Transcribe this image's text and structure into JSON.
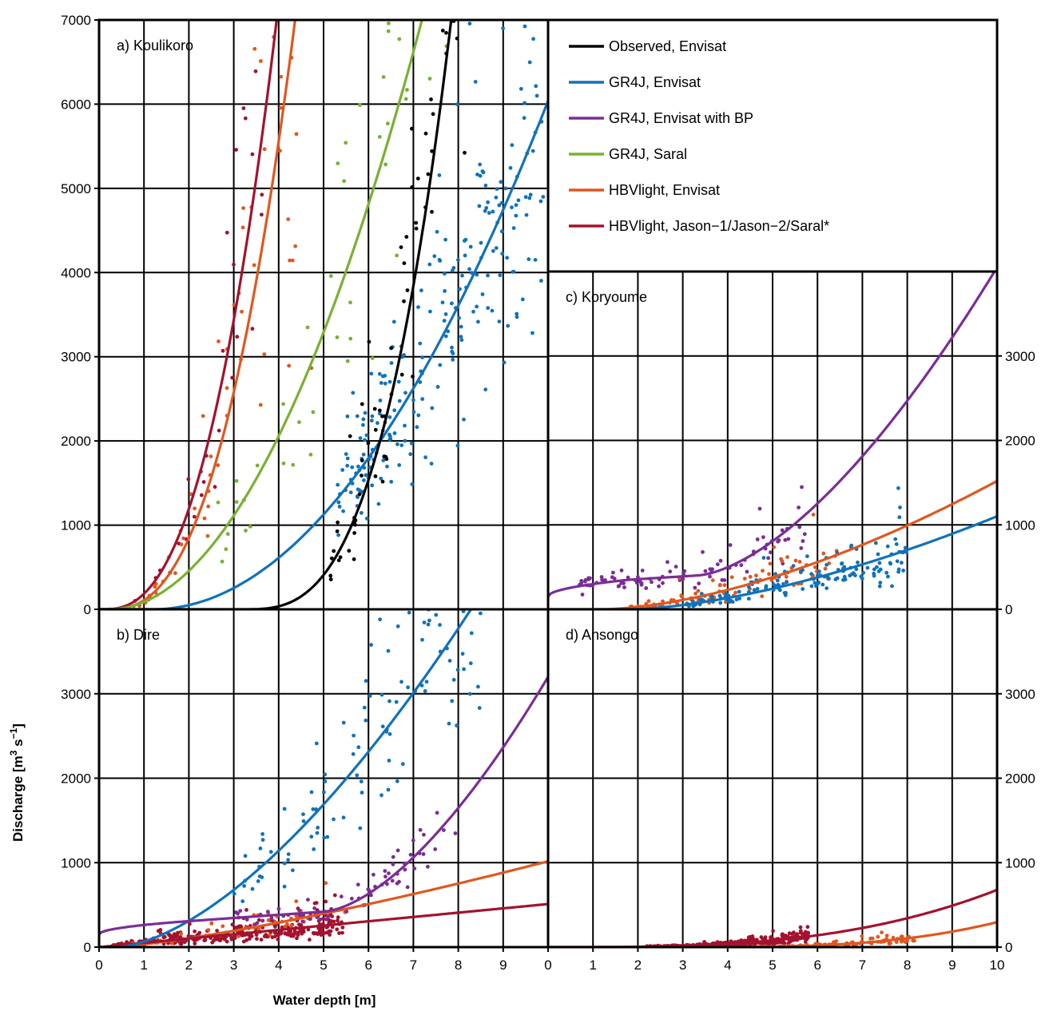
{
  "xlabel": "Water depth [m]",
  "ylabel_main": "Discharge [m",
  "ylabel_sup1": "3",
  "ylabel_mid": " s",
  "ylabel_sup2": "−1",
  "ylabel_end": "]",
  "colors": {
    "observed_envisat": "#000000",
    "gr4j_envisat": "#1072ba",
    "gr4j_envisat_bp": "#7b2d96",
    "gr4j_saral": "#79b130",
    "hbvlight_envisat": "#e0571f",
    "hbvlight_jason": "#a3122e"
  },
  "legend": [
    {
      "key": "observed_envisat",
      "label": "Observed, Envisat"
    },
    {
      "key": "gr4j_envisat",
      "label": "GR4J, Envisat"
    },
    {
      "key": "gr4j_envisat_bp",
      "label": "GR4J, Envisat with BP"
    },
    {
      "key": "gr4j_saral",
      "label": "GR4J, Saral"
    },
    {
      "key": "hbvlight_envisat",
      "label": "HBVlight, Envisat"
    },
    {
      "key": "hbvlight_jason",
      "label": "HBVlight, Jason−1/Jason−2/Saral*"
    }
  ],
  "chart_data": [
    {
      "panel": "a",
      "title": "a) Koulikoro",
      "type": "scatter",
      "xlim": [
        0,
        10
      ],
      "ylim": [
        0,
        7000
      ],
      "xticks": [
        "0",
        "1",
        "2",
        "3",
        "4",
        "5",
        "6",
        "7",
        "8",
        "9"
      ],
      "yticks": [
        "0",
        "1000",
        "2000",
        "3000",
        "4000",
        "5000",
        "6000",
        "7000"
      ],
      "curves": [
        {
          "key": "hbvlight_jason",
          "a": 0.1,
          "b": 0,
          "c": 2400,
          "p": 2.5
        },
        {
          "key": "hbvlight_envisat",
          "a": 0.22,
          "b": 0,
          "c": 2000,
          "p": 2.5
        },
        {
          "key": "gr4j_saral",
          "a": 0.22,
          "b": 0,
          "c": 1440,
          "p": 2.0
        },
        {
          "key": "gr4j_envisat",
          "a": 1.2,
          "b": 0,
          "c": 780,
          "p": 2.0
        },
        {
          "key": "observed_envisat",
          "a": 3.2,
          "b": 0,
          "c": 700,
          "p": 3.0
        }
      ],
      "points": [
        {
          "key": "hbvlight_jason",
          "count": 35,
          "xmin": 0.4,
          "xmax": 4.6,
          "spread": 0.45,
          "seed": 11
        },
        {
          "key": "hbvlight_envisat",
          "count": 75,
          "xmin": 0.2,
          "xmax": 4.9,
          "spread": 0.6,
          "seed": 12
        },
        {
          "key": "gr4j_saral",
          "count": 45,
          "xmin": 2.6,
          "xmax": 7.8,
          "spread": 0.4,
          "seed": 13
        },
        {
          "key": "gr4j_envisat",
          "count": 230,
          "xmin": 5.3,
          "xmax": 9.9,
          "spread": 0.35,
          "seed": 14
        },
        {
          "key": "observed_envisat",
          "count": 85,
          "xmin": 5.1,
          "xmax": 9.3,
          "spread": 0.35,
          "seed": 15
        }
      ]
    },
    {
      "panel": "b",
      "title": "b) Dire",
      "type": "scatter",
      "xlim": [
        0,
        10
      ],
      "ylim": [
        0,
        4000
      ],
      "xticks": [
        "0",
        "1",
        "2",
        "3",
        "4",
        "5",
        "6",
        "7",
        "8",
        "9"
      ],
      "yticks": [
        "0",
        "1000",
        "2000",
        "3000"
      ],
      "curves": [
        {
          "key": "hbvlight_envisat",
          "a": 0.3,
          "b": 0,
          "c": 530,
          "p": 1.3
        },
        {
          "key": "hbvlight_jason",
          "a": 0.0,
          "b": 0,
          "c": 510,
          "p": 1.0
        },
        {
          "key": "gr4j_envisat",
          "a": 0.4,
          "b": 0,
          "c": 1470,
          "p": 1.6
        },
        {
          "key": "gr4j_envisat_bp",
          "type": "bp",
          "q0": 150,
          "q1": 300,
          "x1": 1.8,
          "q2": 420,
          "x2": 5.0,
          "q3": 3200,
          "x3": 10.0
        }
      ],
      "points": [
        {
          "key": "hbvlight_jason",
          "count": 320,
          "xmin": 0.2,
          "xmax": 5.5,
          "spread": 0.55,
          "seed": 21
        },
        {
          "key": "hbvlight_envisat",
          "count": 55,
          "xmin": 0.1,
          "xmax": 5.5,
          "spread": 0.5,
          "seed": 22
        },
        {
          "key": "gr4j_envisat_bp",
          "count": 70,
          "xmin": 3.0,
          "xmax": 8.0,
          "spread": 0.25,
          "seed": 23
        },
        {
          "key": "gr4j_envisat",
          "count": 110,
          "xmin": 3.0,
          "xmax": 8.5,
          "spread": 0.35,
          "seed": 24
        }
      ]
    },
    {
      "panel": "c",
      "title": "c) Koryoume",
      "type": "scatter",
      "xlim": [
        0,
        10
      ],
      "ylim": [
        0,
        4000
      ],
      "xticks": [],
      "yticks": [
        "0",
        "1000",
        "2000",
        "3000"
      ],
      "curves": [
        {
          "key": "gr4j_envisat_bp",
          "type": "bp",
          "q0": 150,
          "q1": 350,
          "x1": 1.8,
          "q2": 400,
          "x2": 3.3,
          "q3": 4050,
          "x3": 10.0
        },
        {
          "key": "hbvlight_envisat",
          "a": 1.2,
          "b": 0,
          "c": 420,
          "p": 1.65
        },
        {
          "key": "gr4j_envisat",
          "a": 1.8,
          "b": 0,
          "c": 380,
          "p": 1.6
        }
      ],
      "points": [
        {
          "key": "gr4j_envisat_bp",
          "count": 90,
          "xmin": 0.7,
          "xmax": 5.8,
          "spread": 0.3,
          "seed": 31
        },
        {
          "key": "hbvlight_envisat",
          "count": 95,
          "xmin": 1.8,
          "xmax": 6.5,
          "spread": 0.55,
          "seed": 32
        },
        {
          "key": "gr4j_envisat",
          "count": 160,
          "xmin": 3.0,
          "xmax": 8.0,
          "spread": 0.45,
          "seed": 33
        }
      ]
    },
    {
      "panel": "d",
      "title": "d) Ansongo",
      "type": "scatter",
      "xlim": [
        0,
        10
      ],
      "ylim": [
        0,
        4000
      ],
      "xticks": [
        "0",
        "1",
        "2",
        "3",
        "4",
        "5",
        "6",
        "7",
        "8",
        "9",
        "10"
      ],
      "yticks": [
        "0",
        "1000",
        "2000",
        "3000"
      ],
      "curves": [
        {
          "key": "hbvlight_jason",
          "a": 0.2,
          "b": 0,
          "c": 7.2,
          "p": 3.0
        },
        {
          "key": "hbvlight_envisat",
          "a": 3.2,
          "b": 0,
          "c": 9.4,
          "p": 3.0
        }
      ],
      "points": [
        {
          "key": "hbvlight_jason",
          "count": 330,
          "xmin": 2.2,
          "xmax": 5.8,
          "spread": 0.55,
          "seed": 41
        },
        {
          "key": "hbvlight_envisat",
          "count": 110,
          "xmin": 4.6,
          "xmax": 8.2,
          "spread": 0.55,
          "seed": 42
        }
      ]
    }
  ]
}
